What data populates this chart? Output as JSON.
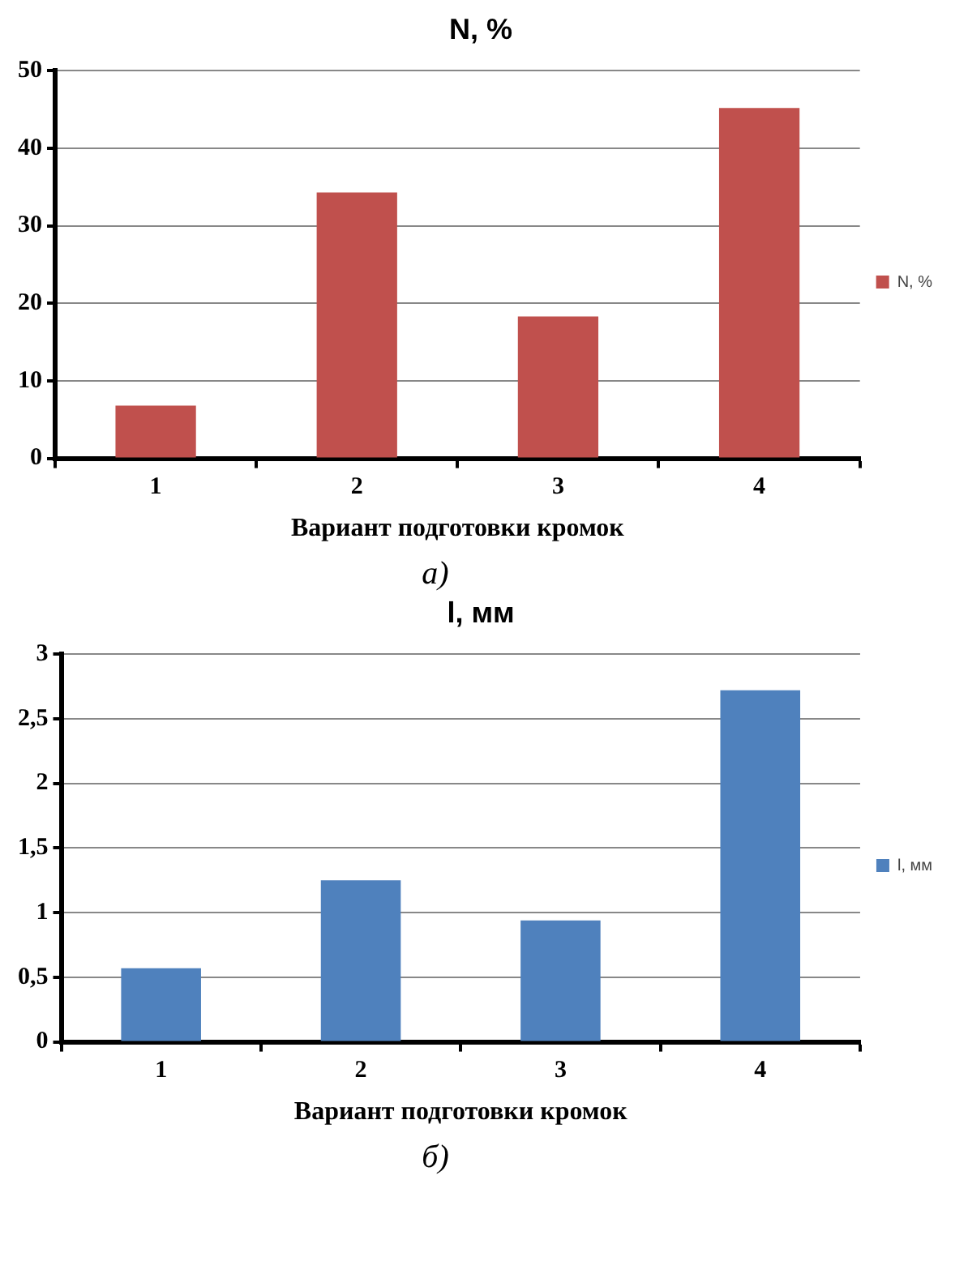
{
  "chart_data": [
    {
      "type": "bar",
      "title": "N, %",
      "xlabel": "Вариант подготовки кромок",
      "categories": [
        "1",
        "2",
        "3",
        "4"
      ],
      "series": [
        {
          "name": "N, %",
          "color": "#c0504d",
          "values": [
            6.8,
            34.3,
            18.3,
            45.2
          ]
        }
      ],
      "ylim": [
        0,
        50
      ],
      "yticks": [
        0,
        10,
        20,
        30,
        40,
        50
      ],
      "grid": "y",
      "legend": "right",
      "annotations": [
        "а)"
      ]
    },
    {
      "type": "bar",
      "title": "l, мм",
      "xlabel": "Вариант подготовки кромок",
      "categories": [
        "1",
        "2",
        "3",
        "4"
      ],
      "series": [
        {
          "name": "l, мм",
          "color": "#4f81bd",
          "values": [
            0.57,
            1.25,
            0.94,
            2.72
          ]
        }
      ],
      "ylim": [
        0,
        3
      ],
      "yticks": [
        0,
        {
          "value": 0.5,
          "label": "0,5"
        },
        1,
        {
          "value": 1.5,
          "label": "1,5"
        },
        2,
        {
          "value": 2.5,
          "label": "2,5"
        },
        3
      ],
      "grid": "y",
      "legend": "right",
      "annotations": [
        "б)"
      ]
    }
  ]
}
